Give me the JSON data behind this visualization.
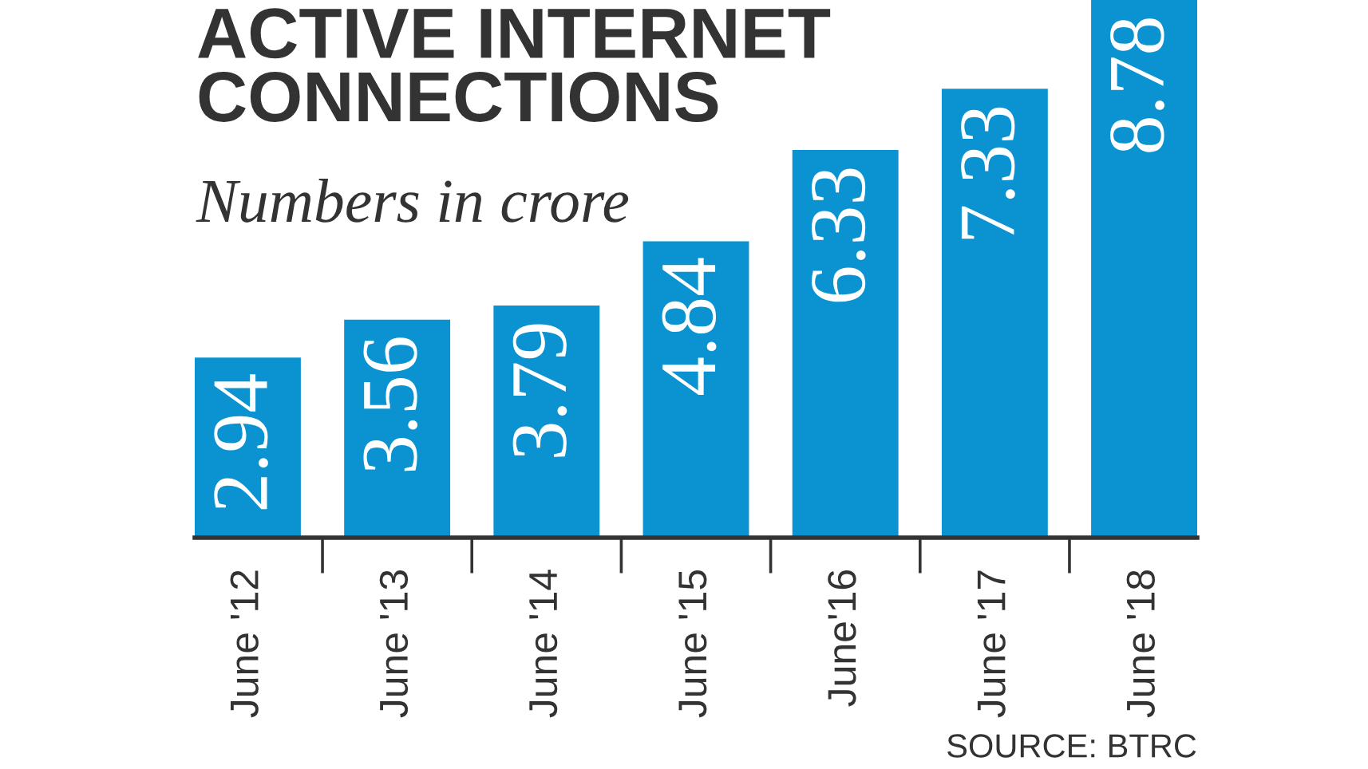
{
  "chart_data": {
    "type": "bar",
    "title": "ACTIVE INTERNET\nCONNECTIONS",
    "subtitle": "Numbers in crore",
    "categories": [
      "June '12",
      "June '13",
      "June '14",
      "June '15",
      "June'16",
      "June '17",
      "June '18"
    ],
    "values": [
      2.94,
      3.56,
      3.79,
      4.84,
      6.33,
      7.33,
      8.78
    ],
    "color": "#0b93d1",
    "data_labels": true,
    "annotations": [
      "SOURCE: BTRC"
    ]
  }
}
